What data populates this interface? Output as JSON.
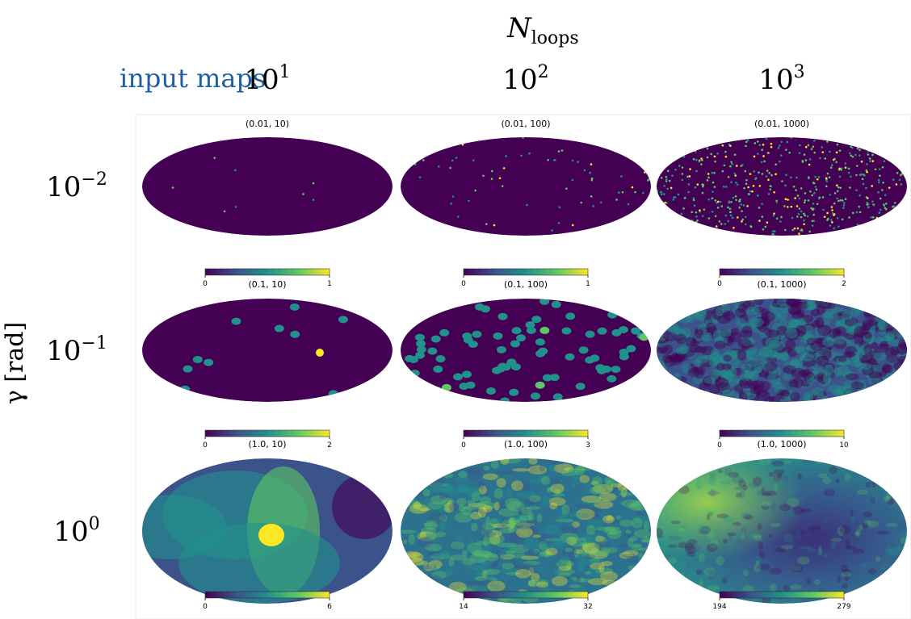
{
  "header": {
    "title_base": "N",
    "title_sub": "loops",
    "input_label": "input maps",
    "y_label": "γ [rad]"
  },
  "columns": [
    {
      "base": "10",
      "exp": "1"
    },
    {
      "base": "10",
      "exp": "2"
    },
    {
      "base": "10",
      "exp": "3"
    }
  ],
  "rows": [
    {
      "base": "10",
      "exp": "−2"
    },
    {
      "base": "10",
      "exp": "−1"
    },
    {
      "base": "10",
      "exp": "0"
    }
  ],
  "panels": [
    [
      {
        "title": "(0.01, 10)",
        "cbar": [
          0,
          1
        ]
      },
      {
        "title": "(0.01, 100)",
        "cbar": [
          0,
          1
        ]
      },
      {
        "title": "(0.01, 1000)",
        "cbar": [
          0,
          2
        ]
      }
    ],
    [
      {
        "title": "(0.1, 10)",
        "cbar": [
          0,
          2
        ]
      },
      {
        "title": "(0.1, 100)",
        "cbar": [
          0,
          3
        ]
      },
      {
        "title": "(0.1, 1000)",
        "cbar": [
          0,
          10
        ]
      }
    ],
    [
      {
        "title": "(1.0, 10)",
        "cbar": [
          0,
          6
        ]
      },
      {
        "title": "(1.0, 100)",
        "cbar": [
          14,
          32
        ]
      },
      {
        "title": "(1.0, 1000)",
        "cbar": [
          194,
          279
        ]
      }
    ]
  ]
}
